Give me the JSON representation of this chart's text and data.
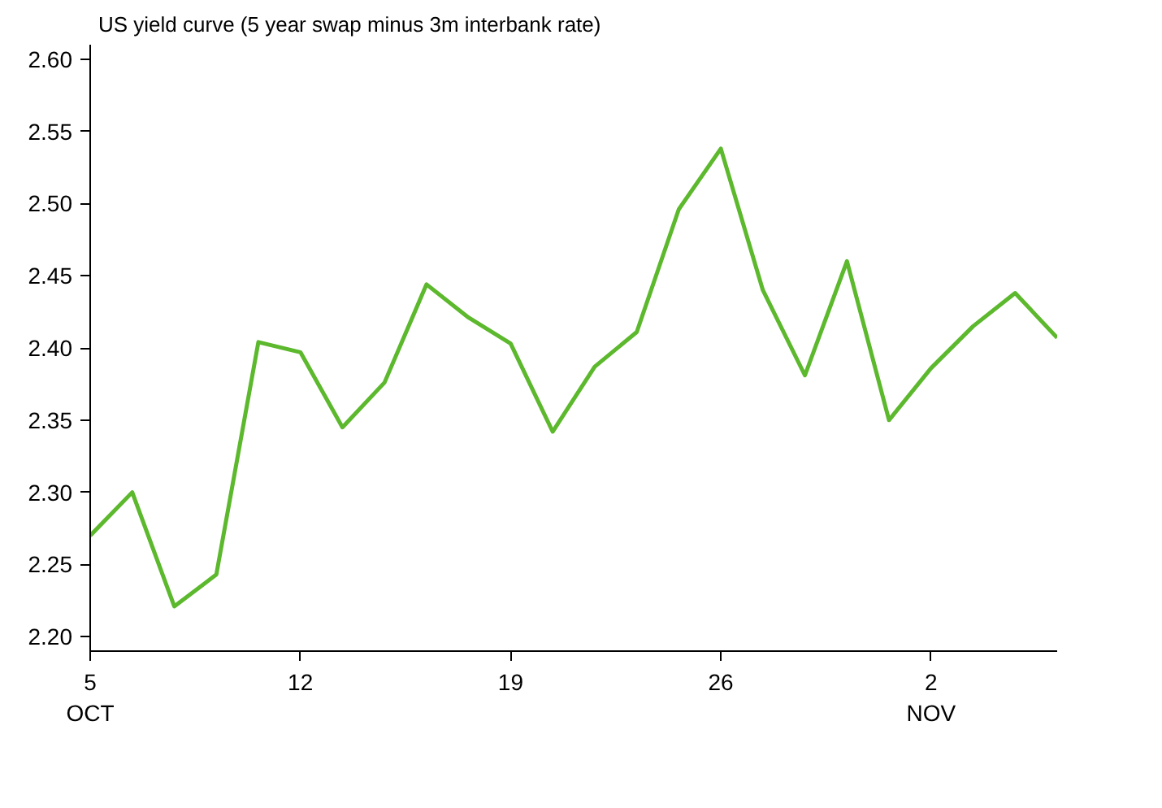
{
  "chart_data": {
    "type": "line",
    "title": "US yield curve (5 year swap minus 3m interbank rate)",
    "categories": [
      "5\nOCT",
      null,
      null,
      null,
      null,
      "12",
      null,
      null,
      null,
      null,
      "19",
      null,
      null,
      null,
      null,
      "26",
      null,
      null,
      null,
      null,
      "2\nNOV",
      null,
      null,
      null
    ],
    "series": [
      {
        "color": "#5cb82c",
        "values": [
          2.27,
          2.3,
          2.221,
          2.243,
          2.404,
          2.397,
          2.345,
          2.376,
          2.444,
          2.421,
          2.403,
          2.342,
          2.387,
          2.411,
          2.496,
          2.538,
          2.44,
          2.381,
          2.46,
          2.35,
          2.386,
          2.415,
          2.438,
          2.407
        ]
      }
    ],
    "ylim": [
      2.19,
      2.61
    ],
    "yticks": [
      {
        "value": 2.2,
        "label": "2.20"
      },
      2.25,
      {
        "value": 2.3,
        "label": "2.30"
      },
      2.35,
      {
        "value": 2.4,
        "label": "2.40"
      },
      2.45,
      {
        "value": 2.5,
        "label": "2.50"
      },
      2.55,
      {
        "value": 2.6,
        "label": "2.60"
      }
    ],
    "grid": false,
    "marker": "none",
    "line_style": "solid"
  }
}
